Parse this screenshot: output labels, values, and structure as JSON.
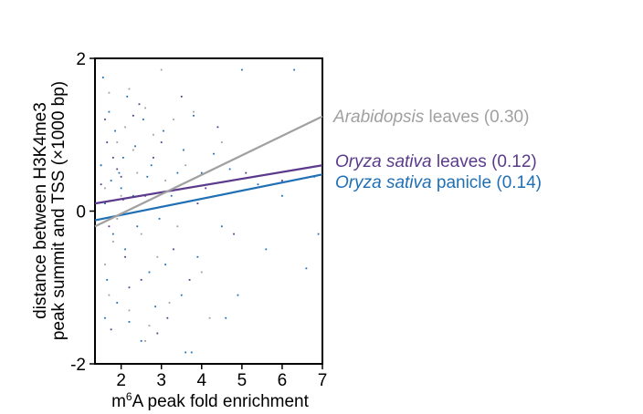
{
  "chart_data": {
    "type": "scatter",
    "title": "",
    "xlabel_prefix": "m",
    "xlabel_superscript": "6",
    "xlabel_suffix": "A peak fold enrichment",
    "ylabel_lines": [
      "distance between H3K4me3",
      "peak summit and TSS (×1000 bp)"
    ],
    "xlim": [
      1.35,
      7
    ],
    "ylim": [
      -2,
      2
    ],
    "xticks": [
      2,
      3,
      4,
      5,
      6,
      7
    ],
    "xtick_labels": [
      "2",
      "3",
      "4",
      "5",
      "6",
      "7"
    ],
    "yticks": [
      -2,
      0,
      2
    ],
    "ytick_labels": [
      "-2",
      "0",
      "2"
    ],
    "grid": false,
    "series": [
      {
        "name": "Arabidopsis leaves",
        "name_italic": "Arabidopsis",
        "name_plain": " leaves",
        "r_label": "(0.30)",
        "color": "#a0a0a0",
        "fit_line": {
          "x": [
            1.35,
            7.0
          ],
          "y": [
            -0.2,
            1.24
          ]
        },
        "points": [
          [
            1.7,
            1.55
          ],
          [
            2.2,
            1.6
          ],
          [
            2.6,
            1.35
          ],
          [
            3.0,
            1.85
          ],
          [
            3.3,
            1.2
          ],
          [
            1.9,
            0.9
          ],
          [
            2.3,
            0.8
          ],
          [
            2.8,
            1.0
          ],
          [
            1.6,
            0.3
          ],
          [
            2.0,
            0.2
          ],
          [
            2.4,
            0.5
          ],
          [
            3.1,
            0.4
          ],
          [
            3.6,
            0.6
          ],
          [
            1.8,
            -0.4
          ],
          [
            2.5,
            -0.3
          ],
          [
            2.9,
            -0.6
          ],
          [
            3.4,
            -0.2
          ],
          [
            1.7,
            -1.1
          ],
          [
            2.2,
            -1.3
          ],
          [
            2.7,
            -1.5
          ],
          [
            3.2,
            -1.2
          ],
          [
            4.0,
            -0.8
          ],
          [
            4.5,
            0.9
          ],
          [
            1.5,
            0.6
          ],
          [
            1.6,
            -0.7
          ],
          [
            2.1,
            1.1
          ],
          [
            3.8,
            1.3
          ],
          [
            4.2,
            -1.4
          ],
          [
            2.6,
            -1.7
          ],
          [
            1.9,
            -0.1
          ]
        ]
      },
      {
        "name": "Oryza sativa leaves",
        "name_italic": "Oryza sativa",
        "name_plain": " leaves",
        "r_label": "(0.12)",
        "color": "#5b3a8c",
        "fit_line": {
          "x": [
            1.35,
            7.0
          ],
          "y": [
            0.1,
            0.6
          ]
        },
        "points": [
          [
            1.6,
            1.2
          ],
          [
            1.8,
            0.7
          ],
          [
            2.0,
            0.45
          ],
          [
            2.3,
            1.25
          ],
          [
            2.6,
            0.2
          ],
          [
            3.0,
            0.9
          ],
          [
            3.5,
            1.5
          ],
          [
            1.7,
            -0.2
          ],
          [
            2.1,
            -0.6
          ],
          [
            2.5,
            -0.9
          ],
          [
            2.9,
            -1.6
          ],
          [
            3.3,
            -0.5
          ],
          [
            4.1,
            0.3
          ],
          [
            4.8,
            -0.3
          ],
          [
            1.5,
            0.35
          ],
          [
            1.9,
            0.55
          ],
          [
            2.2,
            -1.0
          ],
          [
            2.8,
            0.7
          ],
          [
            3.7,
            -0.9
          ],
          [
            5.1,
            0.5
          ],
          [
            1.65,
            0.9
          ],
          [
            2.45,
            1.4
          ],
          [
            3.15,
            -1.4
          ],
          [
            4.4,
            1.1
          ],
          [
            1.75,
            -1.55
          ],
          [
            2.05,
            0.15
          ],
          [
            6.0,
            0.4
          ],
          [
            3.9,
            0.1
          ]
        ]
      },
      {
        "name": "Oryza sativa panicle",
        "name_italic": "Oryza sativa",
        "name_plain": " panicle",
        "r_label": "(0.14)",
        "color": "#1f6fb5",
        "fit_line": {
          "x": [
            1.35,
            7.0
          ],
          "y": [
            -0.12,
            0.48
          ]
        },
        "points": [
          [
            1.55,
            1.75
          ],
          [
            1.7,
            1.3
          ],
          [
            1.85,
            1.05
          ],
          [
            1.95,
            0.5
          ],
          [
            2.0,
            0.3
          ],
          [
            2.15,
            1.5
          ],
          [
            2.35,
            0.85
          ],
          [
            2.55,
            1.2
          ],
          [
            2.75,
            0.6
          ],
          [
            3.05,
            1.05
          ],
          [
            3.4,
            0.5
          ],
          [
            3.8,
            1.25
          ],
          [
            4.3,
            0.75
          ],
          [
            5.0,
            1.85
          ],
          [
            6.3,
            1.85
          ],
          [
            1.6,
            0.1
          ],
          [
            1.8,
            -0.3
          ],
          [
            2.1,
            -0.5
          ],
          [
            2.4,
            -0.2
          ],
          [
            2.7,
            -0.8
          ],
          [
            3.1,
            -0.7
          ],
          [
            3.5,
            -1.1
          ],
          [
            3.9,
            -0.6
          ],
          [
            4.5,
            -0.2
          ],
          [
            5.6,
            -0.5
          ],
          [
            6.6,
            -0.75
          ],
          [
            6.9,
            -0.3
          ],
          [
            1.65,
            -0.9
          ],
          [
            1.9,
            -1.2
          ],
          [
            2.2,
            -1.45
          ],
          [
            2.5,
            -1.7
          ],
          [
            2.85,
            -1.25
          ],
          [
            3.6,
            -1.85
          ],
          [
            3.75,
            -1.85
          ],
          [
            4.9,
            -1.1
          ],
          [
            1.5,
            0.6
          ],
          [
            1.75,
            0.4
          ],
          [
            2.05,
            0.7
          ],
          [
            2.3,
            0.2
          ],
          [
            2.65,
            0.45
          ],
          [
            3.25,
            0.2
          ],
          [
            4.0,
            0.5
          ],
          [
            4.7,
            0.55
          ],
          [
            5.4,
            0.35
          ],
          [
            6.0,
            0.2
          ],
          [
            6.8,
            0.45
          ],
          [
            1.6,
            -1.4
          ],
          [
            2.95,
            -0.1
          ],
          [
            3.55,
            0.8
          ],
          [
            4.6,
            -1.4
          ]
        ]
      }
    ]
  }
}
